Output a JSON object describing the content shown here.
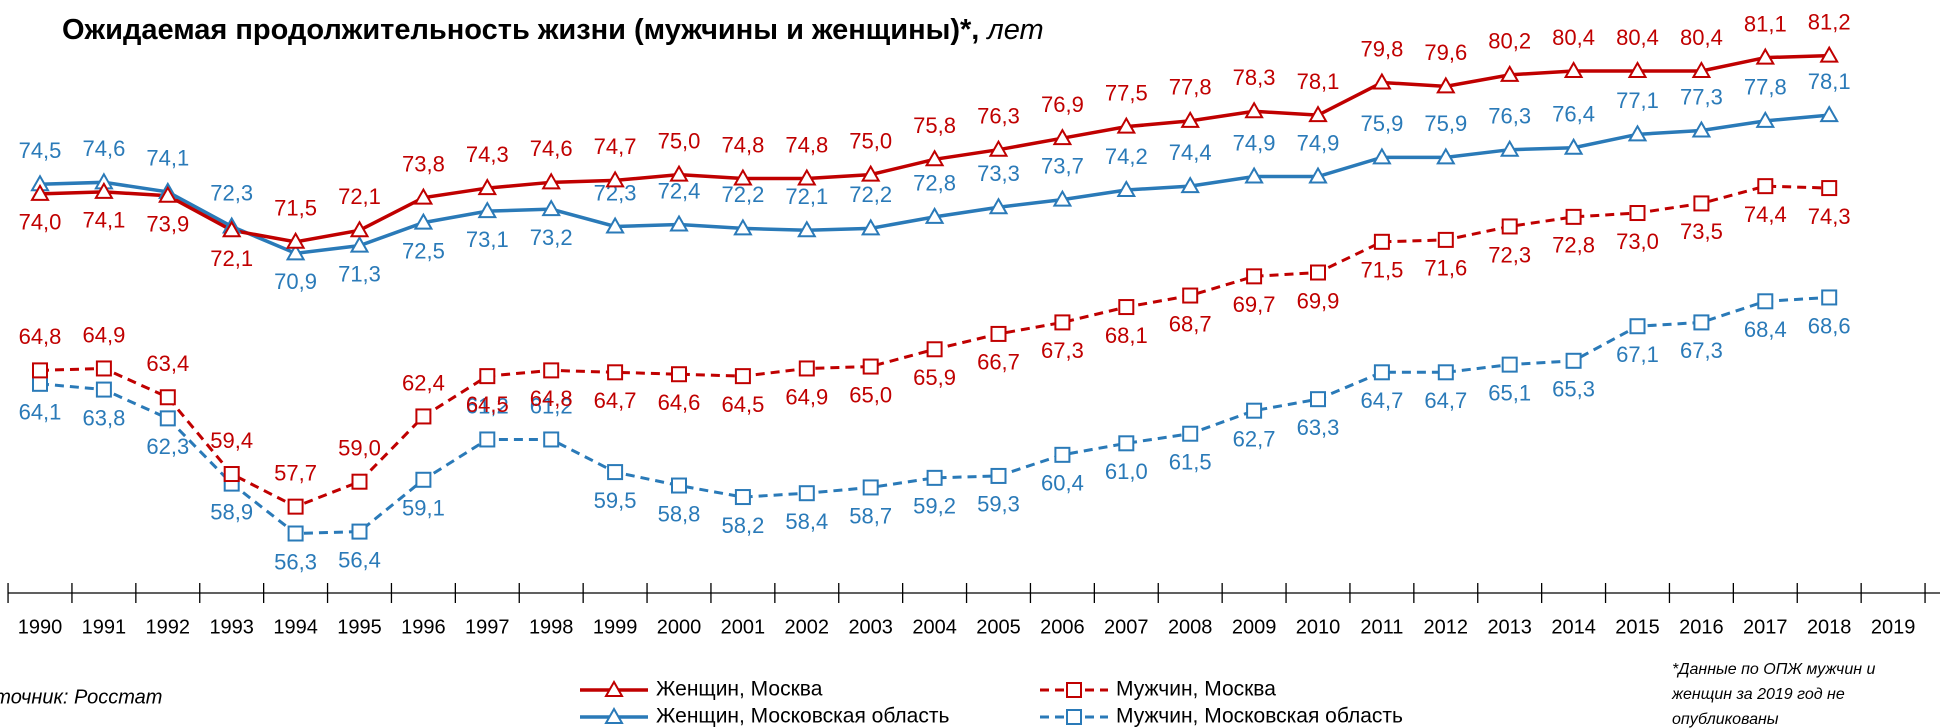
{
  "chart_data": {
    "type": "line",
    "title": "Ожидаемая продолжительность жизни (мужчины и женщины)*,",
    "title_unit": "лет",
    "categories": [
      "1990",
      "1991",
      "1992",
      "1993",
      "1994",
      "1995",
      "1996",
      "1997",
      "1998",
      "1999",
      "2000",
      "2001",
      "2002",
      "2003",
      "2004",
      "2005",
      "2006",
      "2007",
      "2008",
      "2009",
      "2010",
      "2011",
      "2012",
      "2013",
      "2014",
      "2015",
      "2016",
      "2017",
      "2018",
      "2019"
    ],
    "ylim": [
      53.2,
      84.1
    ],
    "legend": "bottom",
    "series": [
      {
        "name": "Женщин, Москва",
        "color": "#c00000",
        "marker": "triangle",
        "dashed": false,
        "values": [
          74.0,
          74.1,
          73.9,
          72.1,
          71.5,
          72.1,
          73.8,
          74.3,
          74.6,
          74.7,
          75.0,
          74.8,
          74.8,
          75.0,
          75.8,
          76.3,
          76.9,
          77.5,
          77.8,
          78.3,
          78.1,
          79.8,
          79.6,
          80.2,
          80.4,
          80.4,
          80.4,
          81.1,
          81.2,
          null
        ],
        "value_labels": [
          "74,0",
          "74,1",
          "73,9",
          "72,1",
          "71,5",
          "72,1",
          "73,8",
          "74,3",
          "74,6",
          "74,7",
          "75,0",
          "74,8",
          "74,8",
          "75,0",
          "75,8",
          "76,3",
          "76,9",
          "77,5",
          "77,8",
          "78,3",
          "78,1",
          "79,8",
          "79,6",
          "80,2",
          "80,4",
          "80,4",
          "80,4",
          "81,1",
          "81,2",
          null
        ]
      },
      {
        "name": "Женщин, Московская область",
        "color": "#2a7ab8",
        "marker": "triangle",
        "dashed": false,
        "values": [
          74.5,
          74.6,
          74.1,
          72.3,
          70.9,
          71.3,
          72.5,
          73.1,
          73.2,
          72.3,
          72.4,
          72.2,
          72.1,
          72.2,
          72.8,
          73.3,
          73.7,
          74.2,
          74.4,
          74.9,
          74.9,
          75.9,
          75.9,
          76.3,
          76.4,
          77.1,
          77.3,
          77.8,
          78.1,
          null
        ],
        "value_labels": [
          "74,5",
          "74,6",
          "74,1",
          "72,3",
          "70,9",
          "71,3",
          "72,5",
          "73,1",
          "73,2",
          "72,3",
          "72,4",
          "72,2",
          "72,1",
          "72,2",
          "72,8",
          "73,3",
          "73,7",
          "74,2",
          "74,4",
          "74,9",
          "74,9",
          "75,9",
          "75,9",
          "76,3",
          "76,4",
          "77,1",
          "77,3",
          "77,8",
          "78,1",
          null
        ]
      },
      {
        "name": "Мужчин, Москва",
        "color": "#c00000",
        "marker": "square",
        "dashed": true,
        "values": [
          64.8,
          64.9,
          63.4,
          59.4,
          57.7,
          59.0,
          62.4,
          64.5,
          64.8,
          64.7,
          64.6,
          64.5,
          64.9,
          65.0,
          65.9,
          66.7,
          67.3,
          68.1,
          68.7,
          69.7,
          69.9,
          71.5,
          71.6,
          72.3,
          72.8,
          73.0,
          73.5,
          74.4,
          74.3,
          null
        ],
        "value_labels": [
          "64,8",
          "64,9",
          "63,4",
          "59,4",
          "57,7",
          "59,0",
          "62,4",
          "64,5",
          "64,8",
          "64,7",
          "64,6",
          "64,5",
          "64,9",
          "65,0",
          "65,9",
          "66,7",
          "67,3",
          "68,1",
          "68,7",
          "69,7",
          "69,9",
          "71,5",
          "71,6",
          "72,3",
          "72,8",
          "73,0",
          "73,5",
          "74,4",
          "74,3",
          null
        ]
      },
      {
        "name": "Мужчин, Московская область",
        "color": "#2a7ab8",
        "marker": "square",
        "dashed": true,
        "values": [
          64.1,
          63.8,
          62.3,
          58.9,
          56.3,
          56.4,
          59.1,
          61.2,
          61.2,
          59.5,
          58.8,
          58.2,
          58.4,
          58.7,
          59.2,
          59.3,
          60.4,
          61.0,
          61.5,
          62.7,
          63.3,
          64.7,
          64.7,
          65.1,
          65.3,
          67.1,
          67.3,
          68.4,
          68.6,
          null
        ],
        "value_labels": [
          "64,1",
          "63,8",
          "62,3",
          "58,9",
          "56,3",
          "56,4",
          "59,1",
          "61,2",
          "61,2",
          "59,5",
          "58,8",
          "58,2",
          "58,4",
          "58,7",
          "59,2",
          "59,3",
          "60,4",
          "61,0",
          "61,5",
          "62,7",
          "63,3",
          "64,7",
          "64,7",
          "65,1",
          "65,3",
          "67,1",
          "67,3",
          "68,4",
          "68,6",
          null
        ]
      }
    ],
    "source": "Источник: Росстат",
    "footnote": [
      "*Данные по ОПЖ мужчин и",
      "женщин за 2019 год не",
      "опубликованы"
    ]
  }
}
